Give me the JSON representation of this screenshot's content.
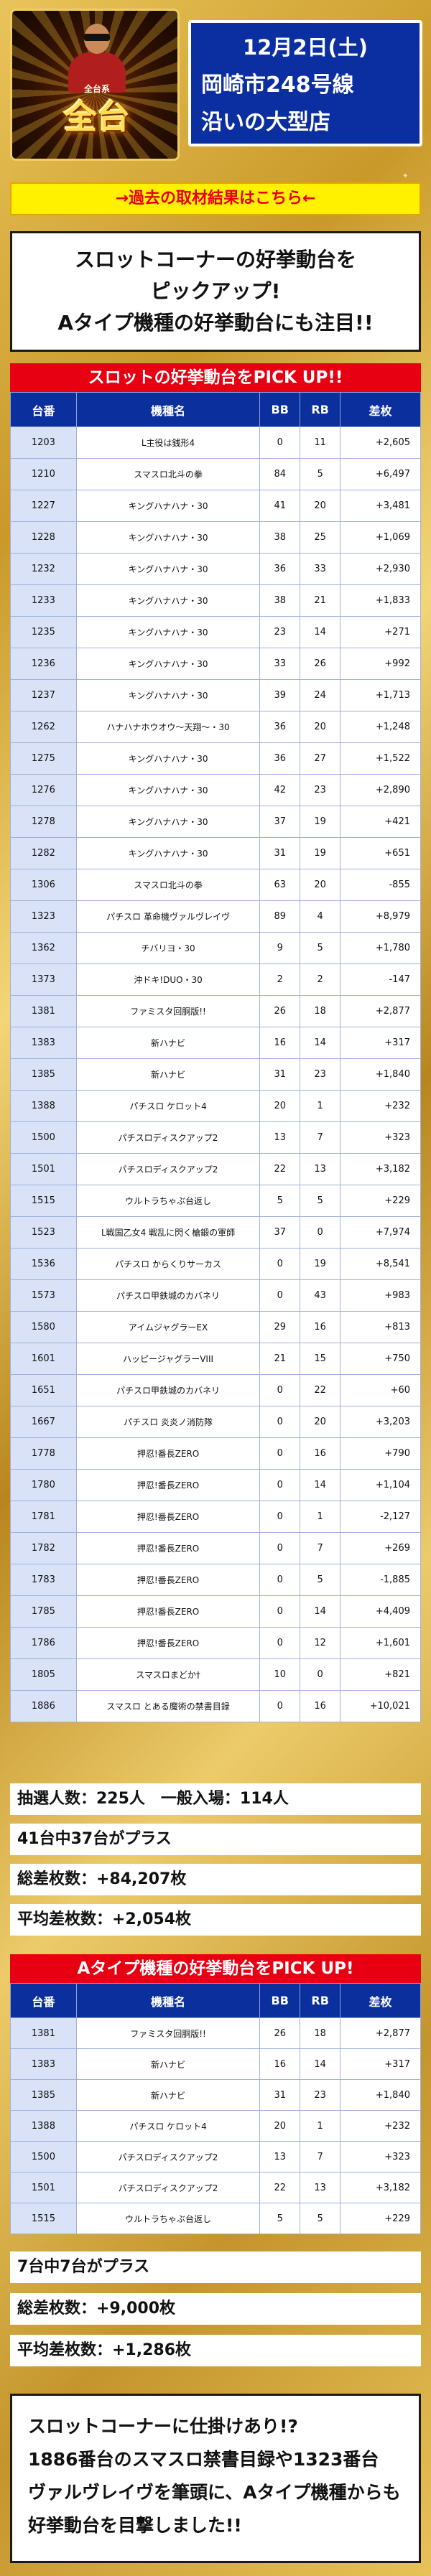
{
  "header": {
    "logo_text": "全台",
    "logo_tag": "全台系",
    "date_line": "12月2日(土)",
    "place_line1": "岡崎市248号線",
    "place_line2": "沿いの大型店"
  },
  "past_link": "→過去の取材結果はこちら←",
  "intro": {
    "line1": "スロットコーナーの好挙動台を",
    "line2": "ピックアップ!",
    "line3": "Aタイプ機種の好挙動台にも注目!!"
  },
  "section1": {
    "title": "スロットの好挙動台をPICK UP!!",
    "headers": [
      "台番",
      "機種名",
      "BB",
      "RB",
      "差枚"
    ],
    "rows": [
      [
        "1203",
        "L主役は銭形4",
        "0",
        "11",
        "+2,605"
      ],
      [
        "1210",
        "スマスロ北斗の拳",
        "84",
        "5",
        "+6,497"
      ],
      [
        "1227",
        "キングハナハナ・30",
        "41",
        "20",
        "+3,481"
      ],
      [
        "1228",
        "キングハナハナ・30",
        "38",
        "25",
        "+1,069"
      ],
      [
        "1232",
        "キングハナハナ・30",
        "36",
        "33",
        "+2,930"
      ],
      [
        "1233",
        "キングハナハナ・30",
        "38",
        "21",
        "+1,833"
      ],
      [
        "1235",
        "キングハナハナ・30",
        "23",
        "14",
        "+271"
      ],
      [
        "1236",
        "キングハナハナ・30",
        "33",
        "26",
        "+992"
      ],
      [
        "1237",
        "キングハナハナ・30",
        "39",
        "24",
        "+1,713"
      ],
      [
        "1262",
        "ハナハナホウオウ〜天翔〜・30",
        "36",
        "20",
        "+1,248"
      ],
      [
        "1275",
        "キングハナハナ・30",
        "36",
        "27",
        "+1,522"
      ],
      [
        "1276",
        "キングハナハナ・30",
        "42",
        "23",
        "+2,890"
      ],
      [
        "1278",
        "キングハナハナ・30",
        "37",
        "19",
        "+421"
      ],
      [
        "1282",
        "キングハナハナ・30",
        "31",
        "19",
        "+651"
      ],
      [
        "1306",
        "スマスロ北斗の拳",
        "63",
        "20",
        "-855"
      ],
      [
        "1323",
        "パチスロ 革命機ヴァルヴレイヴ",
        "89",
        "4",
        "+8,979"
      ],
      [
        "1362",
        "チバリヨ・30",
        "9",
        "5",
        "+1,780"
      ],
      [
        "1373",
        "沖ドキ!DUO・30",
        "2",
        "2",
        "-147"
      ],
      [
        "1381",
        "ファミスタ回胴版!!",
        "26",
        "18",
        "+2,877"
      ],
      [
        "1383",
        "新ハナビ",
        "16",
        "14",
        "+317"
      ],
      [
        "1385",
        "新ハナビ",
        "31",
        "23",
        "+1,840"
      ],
      [
        "1388",
        "パチスロ ケロット4",
        "20",
        "1",
        "+232"
      ],
      [
        "1500",
        "パチスロディスクアップ2",
        "13",
        "7",
        "+323"
      ],
      [
        "1501",
        "パチスロディスクアップ2",
        "22",
        "13",
        "+3,182"
      ],
      [
        "1515",
        "ウルトラちゃぶ台返し",
        "5",
        "5",
        "+229"
      ],
      [
        "1523",
        "L戦国乙女4 戦乱に閃く槍鍛の軍師",
        "37",
        "0",
        "+7,974"
      ],
      [
        "1536",
        "パチスロ からくりサーカス",
        "0",
        "19",
        "+8,541"
      ],
      [
        "1573",
        "パチスロ甲鉄城のカバネリ",
        "0",
        "43",
        "+983"
      ],
      [
        "1580",
        "アイムジャグラーEX",
        "29",
        "16",
        "+813"
      ],
      [
        "1601",
        "ハッピージャグラーVIII",
        "21",
        "15",
        "+750"
      ],
      [
        "1651",
        "パチスロ甲鉄城のカバネリ",
        "0",
        "22",
        "+60"
      ],
      [
        "1667",
        "パチスロ 炎炎ノ消防隊",
        "0",
        "20",
        "+3,203"
      ],
      [
        "1778",
        "押忍!番長ZERO",
        "0",
        "16",
        "+790"
      ],
      [
        "1780",
        "押忍!番長ZERO",
        "0",
        "14",
        "+1,104"
      ],
      [
        "1781",
        "押忍!番長ZERO",
        "0",
        "1",
        "-2,127"
      ],
      [
        "1782",
        "押忍!番長ZERO",
        "0",
        "7",
        "+269"
      ],
      [
        "1783",
        "押忍!番長ZERO",
        "0",
        "5",
        "-1,885"
      ],
      [
        "1785",
        "押忍!番長ZERO",
        "0",
        "14",
        "+4,409"
      ],
      [
        "1786",
        "押忍!番長ZERO",
        "0",
        "12",
        "+1,601"
      ],
      [
        "1805",
        "スマスロまどか†",
        "10",
        "0",
        "+821"
      ],
      [
        "1886",
        "スマスロ とある魔術の禁書目録",
        "0",
        "16",
        "+10,021"
      ]
    ]
  },
  "stats1": {
    "lottery": "抽選人数：225人　一般入場：114人",
    "plus": "41台中37台がプラス",
    "total": "総差枚数：+84,207枚",
    "average": "平均差枚数：+2,054枚"
  },
  "section2": {
    "title": "Aタイプ機種の好挙動台をPICK UP!",
    "headers": [
      "台番",
      "機種名",
      "BB",
      "RB",
      "差枚"
    ],
    "rows": [
      [
        "1381",
        "ファミスタ回胴版!!",
        "26",
        "18",
        "+2,877"
      ],
      [
        "1383",
        "新ハナビ",
        "16",
        "14",
        "+317"
      ],
      [
        "1385",
        "新ハナビ",
        "31",
        "23",
        "+1,840"
      ],
      [
        "1388",
        "パチスロ ケロット4",
        "20",
        "1",
        "+232"
      ],
      [
        "1500",
        "パチスロディスクアップ2",
        "13",
        "7",
        "+323"
      ],
      [
        "1501",
        "パチスロディスクアップ2",
        "22",
        "13",
        "+3,182"
      ],
      [
        "1515",
        "ウルトラちゃぶ台返し",
        "5",
        "5",
        "+229"
      ]
    ]
  },
  "stats2": {
    "plus": "7台中7台がプラス",
    "total": "総差枚数：+9,000枚",
    "average": "平均差枚数：+1,286枚"
  },
  "closing": {
    "line1": "スロットコーナーに仕掛けあり!?",
    "line2": "1886番台のスマスロ禁書目録や1323番台",
    "line3": "ヴァルヴレイヴを筆頭に、Aタイプ機種からも",
    "line4": "好挙動台を目撃しました!!"
  },
  "colors": {
    "navy": "#0c2f9e",
    "red": "#e60012",
    "yellow": "#fff100",
    "gold": "#d8ad3e"
  }
}
